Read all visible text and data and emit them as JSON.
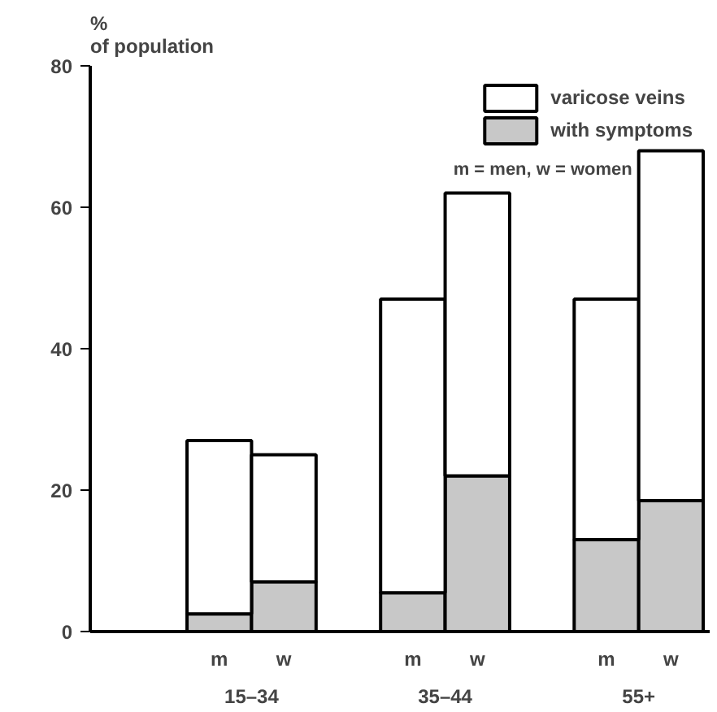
{
  "chart_data": {
    "type": "bar",
    "stacked": true,
    "ylabel": "% of population",
    "categories": [
      "m",
      "w",
      "m",
      "w",
      "m",
      "w"
    ],
    "series": [
      {
        "name": "with symptoms",
        "color": "#c8c8c8",
        "values": [
          2.5,
          7,
          5.5,
          22,
          13,
          18.5
        ]
      },
      {
        "name": "varicose veins",
        "color": "#ffffff",
        "values": [
          24.5,
          18,
          41.5,
          40,
          34,
          49.5
        ]
      }
    ],
    "ylim": [
      0,
      80
    ],
    "yticks": [
      0,
      20,
      40,
      60,
      80
    ],
    "grid": false,
    "legend": "top right",
    "annotations": [
      "15–34",
      "35–44",
      "55+",
      "m = men, w = women"
    ]
  }
}
